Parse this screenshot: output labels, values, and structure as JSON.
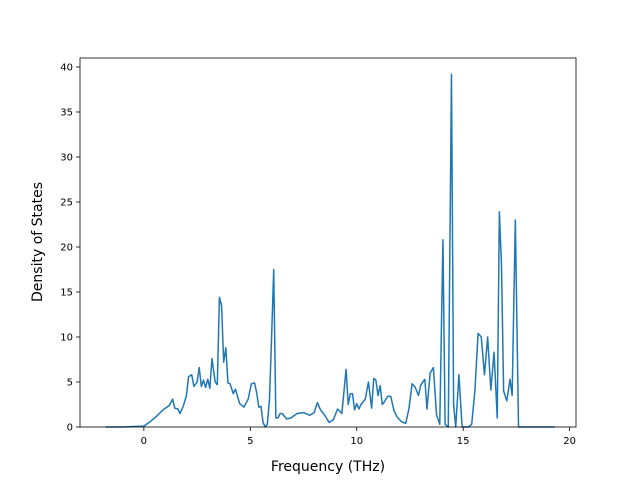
{
  "chart_data": {
    "type": "line",
    "title": "",
    "xlabel": "Frequency (THz)",
    "ylabel": "Density of States",
    "xlim": [
      -3.0,
      20.3
    ],
    "ylim": [
      0,
      41
    ],
    "xticks": [
      0,
      5,
      10,
      15,
      20
    ],
    "yticks": [
      0,
      5,
      10,
      15,
      20,
      25,
      30,
      35,
      40
    ],
    "grid": false,
    "legend": "none",
    "series": [
      {
        "color": "#1f77b4",
        "x": [
          -1.8,
          -1.0,
          0.0,
          0.3,
          0.6,
          0.9,
          1.2,
          1.35,
          1.45,
          1.6,
          1.7,
          1.85,
          2.0,
          2.1,
          2.25,
          2.35,
          2.5,
          2.6,
          2.7,
          2.8,
          2.9,
          3.0,
          3.1,
          3.2,
          3.35,
          3.45,
          3.55,
          3.65,
          3.75,
          3.85,
          3.95,
          4.05,
          4.2,
          4.3,
          4.5,
          4.7,
          4.9,
          5.05,
          5.2,
          5.3,
          5.4,
          5.5,
          5.6,
          5.7,
          5.8,
          5.9,
          6.0,
          6.1,
          6.2,
          6.3,
          6.4,
          6.5,
          6.7,
          6.9,
          7.2,
          7.5,
          7.8,
          8.0,
          8.15,
          8.3,
          8.5,
          8.7,
          8.9,
          9.1,
          9.3,
          9.5,
          9.6,
          9.7,
          9.8,
          9.9,
          10.0,
          10.1,
          10.2,
          10.4,
          10.55,
          10.7,
          10.8,
          10.9,
          11.0,
          11.1,
          11.2,
          11.3,
          11.45,
          11.6,
          11.75,
          11.9,
          12.1,
          12.3,
          12.45,
          12.6,
          12.75,
          12.9,
          13.0,
          13.1,
          13.2,
          13.3,
          13.45,
          13.6,
          13.75,
          13.9,
          14.05,
          14.15,
          14.3,
          14.45,
          14.55,
          14.65,
          14.8,
          14.95,
          15.1,
          15.25,
          15.4,
          15.55,
          15.7,
          15.85,
          16.0,
          16.15,
          16.3,
          16.45,
          16.6,
          16.7,
          16.8,
          16.9,
          17.05,
          17.2,
          17.3,
          17.45,
          17.6,
          17.75,
          18.0,
          19.3
        ],
        "y": [
          0,
          0,
          0.1,
          0.6,
          1.2,
          1.9,
          2.4,
          3.1,
          2.1,
          2.0,
          1.5,
          2.3,
          3.5,
          5.6,
          5.8,
          4.5,
          5.0,
          6.6,
          4.5,
          5.2,
          4.4,
          5.3,
          4.3,
          7.6,
          5.0,
          4.7,
          14.4,
          13.5,
          7.2,
          8.8,
          4.9,
          4.8,
          3.7,
          4.2,
          2.6,
          2.2,
          3.1,
          4.8,
          4.9,
          3.8,
          2.2,
          2.3,
          0.5,
          0.0,
          0.3,
          3.0,
          10.0,
          17.5,
          1.0,
          1.0,
          1.5,
          1.5,
          0.9,
          1.0,
          1.5,
          1.6,
          1.3,
          1.6,
          2.7,
          1.9,
          1.3,
          0.5,
          0.8,
          2.0,
          1.5,
          6.4,
          2.5,
          3.7,
          3.7,
          1.9,
          2.6,
          2.0,
          2.5,
          3.1,
          5.0,
          2.1,
          5.4,
          5.2,
          3.5,
          4.6,
          2.5,
          2.8,
          3.4,
          3.4,
          1.8,
          1.1,
          0.6,
          0.4,
          2.0,
          4.8,
          4.4,
          3.5,
          4.6,
          5.0,
          5.3,
          2.0,
          6.0,
          6.6,
          1.3,
          0.3,
          20.8,
          0.3,
          0.0,
          39.2,
          2.5,
          0.0,
          5.8,
          0.0,
          0.0,
          0.0,
          0.3,
          4.0,
          10.4,
          10.0,
          5.8,
          10.0,
          4.1,
          8.3,
          1.0,
          23.9,
          18.0,
          4.0,
          2.9,
          5.3,
          3.5,
          23.0,
          0.0,
          0.0,
          0.0,
          0.0
        ]
      }
    ]
  }
}
